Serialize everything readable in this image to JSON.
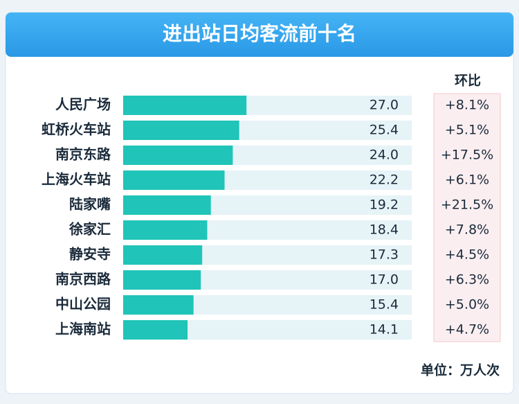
{
  "chart_data": {
    "type": "bar",
    "orientation": "horizontal",
    "title": "进出站日均客流前十名",
    "categories": [
      "人民广场",
      "虹桥火车站",
      "南京东路",
      "上海火车站",
      "陆家嘴",
      "徐家汇",
      "静安寺",
      "南京西路",
      "中山公园",
      "上海南站"
    ],
    "values": [
      27.0,
      25.4,
      24.0,
      22.2,
      19.2,
      18.4,
      17.3,
      17.0,
      15.4,
      14.1
    ],
    "value_labels": [
      "27.0",
      "25.4",
      "24.0",
      "22.2",
      "19.2",
      "18.4",
      "17.3",
      "17.0",
      "15.4",
      "14.1"
    ],
    "color": "#20c4b8",
    "change": {
      "title": "环比",
      "values": [
        8.1,
        5.1,
        17.5,
        6.1,
        21.5,
        7.8,
        4.5,
        6.3,
        5.0,
        4.7
      ],
      "value_labels": [
        "+8.1%",
        "+5.1%",
        "+17.5%",
        "+6.1%",
        "+21.5%",
        "+7.8%",
        "+4.5%",
        "+6.3%",
        "+5.0%",
        "+4.7%"
      ]
    },
    "unit": "单位：万人次"
  }
}
